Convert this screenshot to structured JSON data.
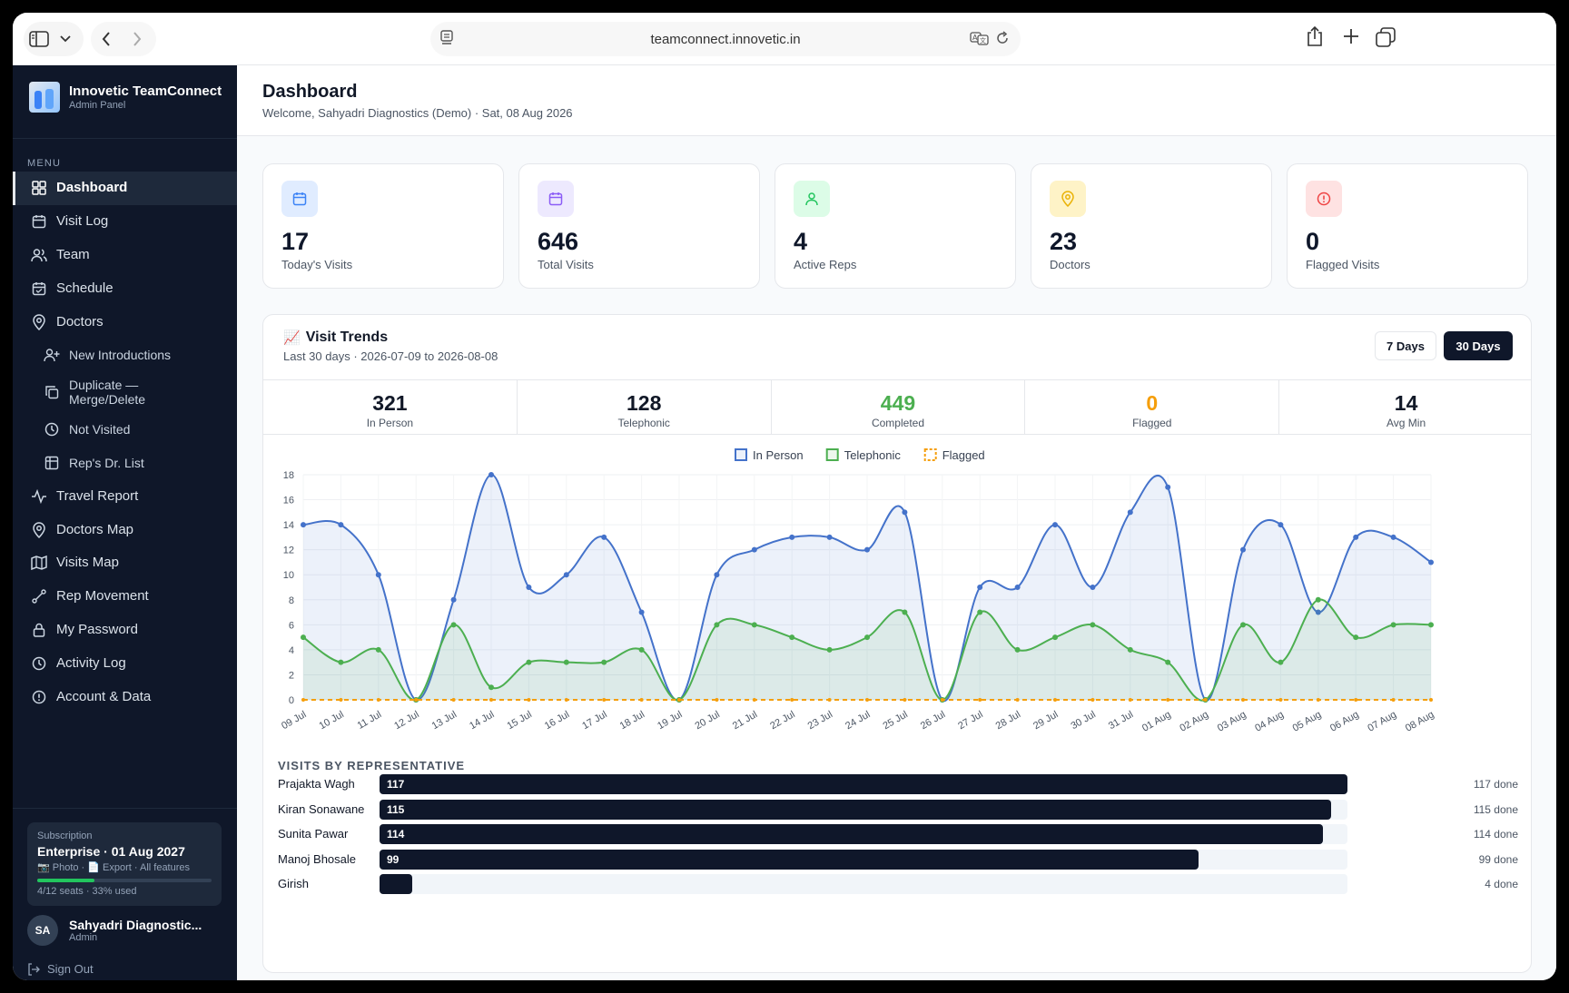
{
  "browser": {
    "url": "teamconnect.innovetic.in"
  },
  "sidebar": {
    "brand_title": "Innovetic TeamConnect",
    "brand_subtitle": "Admin Panel",
    "menu_label": "MENU",
    "items": [
      {
        "label": "Dashboard",
        "icon": "grid-icon",
        "active": true,
        "sub": false
      },
      {
        "label": "Visit Log",
        "icon": "calendar-icon",
        "sub": false
      },
      {
        "label": "Team",
        "icon": "users-icon",
        "sub": false
      },
      {
        "label": "Schedule",
        "icon": "calendar-check-icon",
        "sub": false
      },
      {
        "label": "Doctors",
        "icon": "map-pin-icon",
        "sub": false
      },
      {
        "label": "New Introductions",
        "icon": "user-plus-icon",
        "sub": true
      },
      {
        "label": "Duplicate — Merge/Delete",
        "icon": "copy-icon",
        "sub": true,
        "tall": true
      },
      {
        "label": "Not Visited",
        "icon": "clock-icon",
        "sub": true
      },
      {
        "label": "Rep's Dr. List",
        "icon": "table-icon",
        "sub": true
      },
      {
        "label": "Travel Report",
        "icon": "activity-icon",
        "sub": false
      },
      {
        "label": "Doctors Map",
        "icon": "map-pin-icon",
        "sub": false
      },
      {
        "label": "Visits Map",
        "icon": "map-icon",
        "sub": false
      },
      {
        "label": "Rep Movement",
        "icon": "route-icon",
        "sub": false
      },
      {
        "label": "My Password",
        "icon": "lock-icon",
        "sub": false
      },
      {
        "label": "Activity Log",
        "icon": "clock-icon",
        "sub": false
      },
      {
        "label": "Account & Data",
        "icon": "alert-circle-icon",
        "sub": false
      }
    ],
    "subscription": {
      "label": "Subscription",
      "plan": "Enterprise · 01 Aug 2027",
      "features": "📷 Photo · 📄 Export · All features",
      "seats": "4/12 seats · 33% used",
      "usage_fraction": 0.33
    },
    "user": {
      "initials": "SA",
      "name": "Sahyadri Diagnostic...",
      "role": "Admin"
    },
    "sign_out": "Sign Out"
  },
  "header": {
    "title": "Dashboard",
    "subtitle": "Welcome, Sahyadri Diagnostics (Demo) · Sat, 08 Aug 2026"
  },
  "stats": [
    {
      "value": "17",
      "label": "Today's Visits",
      "icon": "calendar-icon",
      "color": "#3b82f6",
      "bg": "#e0ecff"
    },
    {
      "value": "646",
      "label": "Total Visits",
      "icon": "calendar-icon",
      "color": "#8b5cf6",
      "bg": "#ede9fe"
    },
    {
      "value": "4",
      "label": "Active Reps",
      "icon": "user-icon",
      "color": "#22c55e",
      "bg": "#dcfce7"
    },
    {
      "value": "23",
      "label": "Doctors",
      "icon": "map-pin-icon",
      "color": "#eab308",
      "bg": "#fef3c7"
    },
    {
      "value": "0",
      "label": "Flagged Visits",
      "icon": "alert-circle-icon",
      "color": "#ef4444",
      "bg": "#fee2e2"
    }
  ],
  "trends": {
    "emoji": "📈",
    "title": "Visit Trends",
    "subtitle": "Last 30 days · 2026-07-09 to 2026-08-08",
    "btn_7": "7 Days",
    "btn_30": "30 Days",
    "summary": [
      {
        "value": "321",
        "label": "In Person",
        "color": "#111827"
      },
      {
        "value": "128",
        "label": "Telephonic",
        "color": "#111827"
      },
      {
        "value": "449",
        "label": "Completed",
        "color": "#4caf50"
      },
      {
        "value": "0",
        "label": "Flagged",
        "color": "#f59e0b"
      },
      {
        "value": "14",
        "label": "Avg Min",
        "color": "#111827"
      }
    ]
  },
  "chart_data": {
    "type": "line",
    "x": [
      "09 Jul",
      "10 Jul",
      "11 Jul",
      "12 Jul",
      "13 Jul",
      "14 Jul",
      "15 Jul",
      "16 Jul",
      "17 Jul",
      "18 Jul",
      "19 Jul",
      "20 Jul",
      "21 Jul",
      "22 Jul",
      "23 Jul",
      "24 Jul",
      "25 Jul",
      "26 Jul",
      "27 Jul",
      "28 Jul",
      "29 Jul",
      "30 Jul",
      "31 Jul",
      "01 Aug",
      "02 Aug",
      "03 Aug",
      "04 Aug",
      "05 Aug",
      "06 Aug",
      "07 Aug",
      "08 Aug"
    ],
    "series": [
      {
        "name": "In Person",
        "color": "#4472ca",
        "fill": "rgba(68,114,202,0.10)",
        "values": [
          14,
          14,
          10,
          0,
          8,
          18,
          9,
          10,
          13,
          7,
          0,
          10,
          12,
          13,
          13,
          12,
          15,
          0,
          9,
          9,
          14,
          9,
          15,
          17,
          0,
          12,
          14,
          7,
          13,
          13,
          11
        ]
      },
      {
        "name": "Telephonic",
        "color": "#4caf50",
        "fill": "rgba(76,175,80,0.10)",
        "values": [
          5,
          3,
          4,
          0,
          6,
          1,
          3,
          3,
          3,
          4,
          0,
          6,
          6,
          5,
          4,
          5,
          7,
          0,
          7,
          4,
          5,
          6,
          4,
          3,
          0,
          6,
          3,
          8,
          5,
          6,
          6
        ]
      },
      {
        "name": "Flagged",
        "color": "#f59e0b",
        "dashed": true,
        "values": [
          0,
          0,
          0,
          0,
          0,
          0,
          0,
          0,
          0,
          0,
          0,
          0,
          0,
          0,
          0,
          0,
          0,
          0,
          0,
          0,
          0,
          0,
          0,
          0,
          0,
          0,
          0,
          0,
          0,
          0,
          0
        ]
      }
    ],
    "yticks": [
      0,
      2,
      4,
      6,
      8,
      10,
      12,
      14,
      16,
      18
    ],
    "ylim": [
      0,
      18
    ],
    "legend_position": "top-center",
    "grid": true
  },
  "reps": {
    "title": "VISITS BY REPRESENTATIVE",
    "max": 117,
    "rows": [
      {
        "name": "Prajakta Wagh",
        "count": 117,
        "label": "117",
        "done": "117 done"
      },
      {
        "name": "Kiran Sonawane",
        "count": 115,
        "label": "115",
        "done": "115 done"
      },
      {
        "name": "Sunita Pawar",
        "count": 114,
        "label": "114",
        "done": "114 done"
      },
      {
        "name": "Manoj Bhosale",
        "count": 99,
        "label": "99",
        "done": "99 done"
      },
      {
        "name": "Girish",
        "count": 4,
        "label": "",
        "done": "4 done"
      }
    ]
  }
}
